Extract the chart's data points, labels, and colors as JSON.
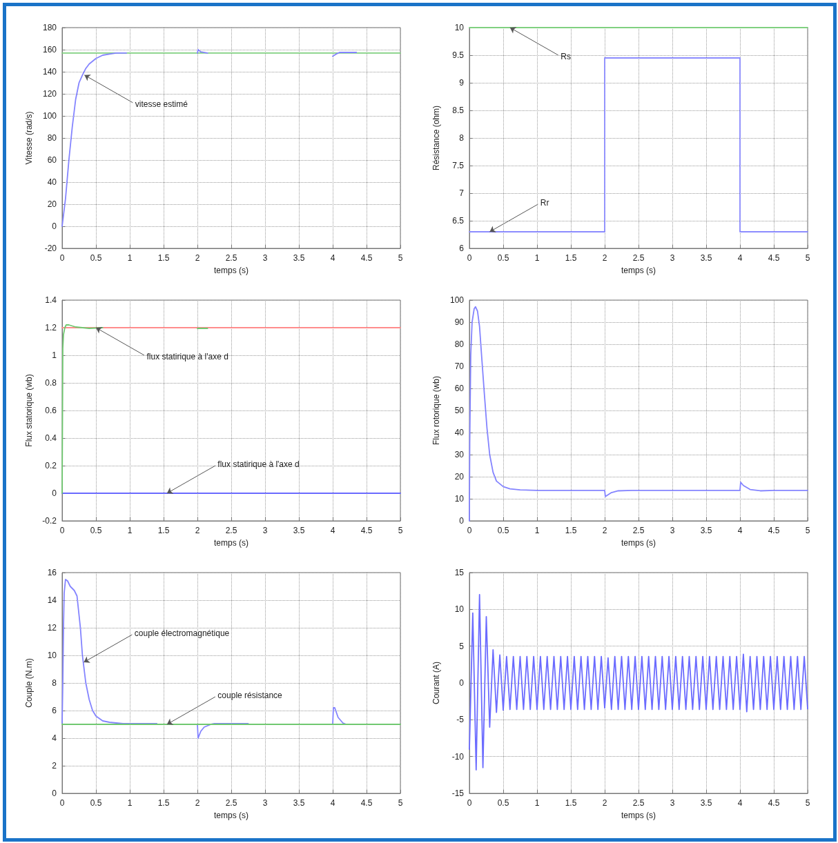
{
  "chart_data": [
    {
      "type": "line",
      "xlabel": "temps (s)",
      "ylabel": "Vitesse (rad/s)",
      "xlim": [
        0,
        5
      ],
      "xticks": [
        0,
        0.5,
        1,
        1.5,
        2,
        2.5,
        3,
        3.5,
        4,
        4.5,
        5
      ],
      "ylim": [
        -20,
        180
      ],
      "yticks": [
        -20,
        0,
        20,
        40,
        60,
        80,
        100,
        120,
        140,
        160,
        180
      ],
      "grid": true,
      "marker": "none",
      "line_style": "solid",
      "series": [
        {
          "color": "#80d080",
          "x": [
            0,
            5
          ],
          "values": [
            157,
            157
          ]
        },
        {
          "color": "#8484ff",
          "x": [
            0,
            0.05,
            0.1,
            0.15,
            0.2,
            0.25,
            0.3,
            0.35,
            0.4,
            0.5,
            0.6,
            0.7,
            0.8,
            0.95,
            1.5,
            3,
            4,
            4.05,
            4.1,
            4.35
          ],
          "values": [
            0,
            25,
            60,
            90,
            115,
            130,
            137,
            143,
            147,
            152,
            155,
            156,
            157,
            157,
            null,
            null,
            154,
            156,
            157.5,
            157.5
          ]
        },
        {
          "color": "#8484ff",
          "x": [
            2,
            2.01,
            2.05,
            2.15
          ],
          "values": [
            157,
            160,
            158,
            157
          ]
        }
      ],
      "annotations": [
        {
          "text": "vitesse estimé",
          "x": 0.33,
          "y": 137
        }
      ]
    },
    {
      "type": "line",
      "xlabel": "temps (s)",
      "ylabel": "Résistance (ohm)",
      "xlim": [
        0,
        5
      ],
      "xticks": [
        0,
        0.5,
        1,
        1.5,
        2,
        2.5,
        3,
        3.5,
        4,
        4.5,
        5
      ],
      "ylim": [
        6,
        10
      ],
      "yticks": [
        6,
        6.5,
        7,
        7.5,
        8,
        8.5,
        9,
        9.5,
        10
      ],
      "grid": true,
      "marker": "none",
      "line_style": "solid",
      "series": [
        {
          "type": "step",
          "color": "#8c8cff",
          "x": [
            0,
            2,
            4,
            5
          ],
          "values": [
            6.3,
            9.45,
            6.3,
            6.3
          ]
        },
        {
          "color": "#80d080",
          "x": [
            0,
            5
          ],
          "values": [
            10,
            10
          ]
        }
      ],
      "annotations": [
        {
          "text": "Rs",
          "x": 0.6,
          "y": 10
        },
        {
          "text": "Rr",
          "x": 0.3,
          "y": 6.3
        }
      ]
    },
    {
      "type": "line",
      "xlabel": "temps (s)",
      "ylabel": "Flux statorique (wb)",
      "xlim": [
        0,
        5
      ],
      "xticks": [
        0,
        0.5,
        1,
        1.5,
        2,
        2.5,
        3,
        3.5,
        4,
        4.5,
        5
      ],
      "ylim": [
        -0.2,
        1.4
      ],
      "yticks": [
        -0.2,
        0,
        0.2,
        0.4,
        0.6,
        0.8,
        1,
        1.2,
        1.4
      ],
      "grid": true,
      "marker": "none",
      "line_style": "solid",
      "series": [
        {
          "color": "#ff8c8c",
          "x": [
            0,
            5
          ],
          "values": [
            1.2,
            1.2
          ]
        },
        {
          "color": "#6a6aff",
          "x": [
            0,
            5
          ],
          "values": [
            0,
            0
          ]
        },
        {
          "color": "#70c870",
          "x": [
            0,
            0.01,
            0.02,
            0.04,
            0.06,
            0.1,
            0.2,
            0.3,
            0.4,
            0.6,
            1.2,
            2,
            2.15
          ],
          "values": [
            0,
            1.05,
            1.15,
            1.2,
            1.22,
            1.22,
            1.205,
            1.2,
            1.195,
            1.2,
            null,
            1.195,
            1.195
          ]
        }
      ],
      "annotations": [
        {
          "text": "flux statirique à l'axe d",
          "x": 0.5,
          "y": 1.2
        },
        {
          "text": "flux statirique à l'axe d",
          "x": 1.55,
          "y": 0
        }
      ]
    },
    {
      "type": "line",
      "xlabel": "temps (s)",
      "ylabel": "Flux rotorique (wb)",
      "xlim": [
        0,
        5
      ],
      "xticks": [
        0,
        0.5,
        1,
        1.5,
        2,
        2.5,
        3,
        3.5,
        4,
        4.5,
        5
      ],
      "ylim": [
        0,
        100
      ],
      "yticks": [
        0,
        10,
        20,
        30,
        40,
        50,
        60,
        70,
        80,
        90,
        100
      ],
      "grid": true,
      "marker": "none",
      "line_style": "solid",
      "series": [
        {
          "color": "#8484ff",
          "x": [
            0,
            0.005,
            0.02,
            0.04,
            0.07,
            0.09,
            0.12,
            0.15,
            0.18,
            0.22,
            0.26,
            0.3,
            0.35,
            0.4,
            0.5,
            0.6,
            0.75,
            1,
            2,
            2.01,
            2.1,
            2.2,
            2.4,
            4,
            4.01,
            4.05,
            4.15,
            4.3,
            4.5,
            5
          ],
          "values": [
            0,
            35,
            75,
            90,
            96,
            97,
            95,
            88,
            75,
            58,
            42,
            30,
            22,
            18,
            15.5,
            14.5,
            14,
            13.8,
            13.8,
            11,
            12.8,
            13.6,
            13.8,
            13.8,
            17.5,
            16,
            14.2,
            13.6,
            13.8,
            13.8
          ]
        }
      ]
    },
    {
      "type": "line",
      "xlabel": "temps (s)",
      "ylabel": "Couple (N.m)",
      "xlim": [
        0,
        5
      ],
      "xticks": [
        0,
        0.5,
        1,
        1.5,
        2,
        2.5,
        3,
        3.5,
        4,
        4.5,
        5
      ],
      "ylim": [
        0,
        16
      ],
      "yticks": [
        0,
        2,
        4,
        6,
        8,
        10,
        12,
        14,
        16
      ],
      "grid": true,
      "marker": "none",
      "line_style": "solid",
      "series": [
        {
          "color": "#8484ff",
          "x": [
            0,
            0.01,
            0.02,
            0.03,
            0.05,
            0.08,
            0.12,
            0.18,
            0.22,
            0.27,
            0.3,
            0.35,
            0.4,
            0.45,
            0.5,
            0.6,
            0.7,
            0.9,
            1.4,
            1.7,
            2,
            2.01,
            2.05,
            2.1,
            2.2,
            2.25,
            2.75,
            3.4,
            4,
            4.01,
            4.03,
            4.08,
            4.15,
            4.2
          ],
          "values": [
            5.1,
            8,
            12,
            14.5,
            15.5,
            15.4,
            15,
            14.7,
            14.3,
            12,
            10,
            8,
            6.8,
            6,
            5.6,
            5.25,
            5.15,
            5.05,
            5.05,
            null,
            5,
            4,
            4.5,
            4.8,
            5,
            5.05,
            5.05,
            null,
            5,
            6.2,
            6.2,
            5.5,
            5.1,
            5
          ]
        },
        {
          "color": "#70c870",
          "x": [
            0,
            5
          ],
          "values": [
            5,
            5
          ]
        }
      ],
      "annotations": [
        {
          "text": "couple électromagnétique",
          "x": 0.32,
          "y": 9.5
        },
        {
          "text": "couple résistance",
          "x": 1.55,
          "y": 5
        }
      ]
    },
    {
      "type": "line",
      "xlabel": "temps (s)",
      "ylabel": "Courant (A)",
      "xlim": [
        0,
        5
      ],
      "xticks": [
        0,
        0.5,
        1,
        1.5,
        2,
        2.5,
        3,
        3.5,
        4,
        4.5,
        5
      ],
      "ylim": [
        -15,
        15
      ],
      "yticks": [
        -15,
        -10,
        -5,
        0,
        5,
        10,
        15
      ],
      "grid": true,
      "marker": "none",
      "line_style": "solid",
      "series": [
        {
          "color": "#6b6bff",
          "x": [
            0,
            0.05,
            0.1,
            0.15,
            0.2,
            0.25,
            0.3,
            0.35,
            0.4,
            0.45,
            0.5,
            0.55,
            0.6,
            0.65,
            0.7,
            0.75,
            0.8,
            0.85,
            0.9,
            0.95,
            1,
            1.05,
            1.1,
            1.15,
            1.2,
            1.25,
            1.3,
            1.35,
            1.4,
            1.45,
            1.5,
            1.55,
            1.6,
            1.65,
            1.7,
            1.75,
            1.8,
            1.85,
            1.9,
            1.95,
            2,
            2.05,
            2.1,
            2.15,
            2.2,
            2.25,
            2.3,
            2.35,
            2.4,
            2.45,
            2.5,
            2.55,
            2.6,
            2.65,
            2.7,
            2.75,
            2.8,
            2.85,
            2.9,
            2.95,
            3,
            3.05,
            3.1,
            3.15,
            3.2,
            3.25,
            3.3,
            3.35,
            3.4,
            3.45,
            3.5,
            3.55,
            3.6,
            3.65,
            3.7,
            3.75,
            3.8,
            3.85,
            3.9,
            3.95,
            4,
            4.05,
            4.1,
            4.15,
            4.2,
            4.25,
            4.3,
            4.35,
            4.4,
            4.45,
            4.5,
            4.55,
            4.6,
            4.65,
            4.7,
            4.75,
            4.8,
            4.85,
            4.9,
            4.95,
            5
          ],
          "values": [
            -9,
            9.5,
            -11.8,
            12,
            -11.5,
            9,
            -6,
            4.5,
            -4,
            3.8,
            -3.7,
            3.6,
            -3.6,
            3.6,
            -3.6,
            3.6,
            -3.6,
            3.6,
            -3.6,
            3.6,
            -3.6,
            3.6,
            -3.6,
            3.6,
            -3.6,
            3.6,
            -3.6,
            3.6,
            -3.6,
            3.6,
            -3.6,
            3.6,
            -3.6,
            3.6,
            -3.6,
            3.6,
            -3.6,
            3.6,
            -3.6,
            3.6,
            -3.4,
            3.4,
            -3.6,
            3.6,
            -3.6,
            3.6,
            -3.6,
            3.6,
            -3.6,
            3.6,
            -3.6,
            3.6,
            -3.6,
            3.6,
            -3.6,
            3.6,
            -3.6,
            3.6,
            -3.6,
            3.6,
            -3.6,
            3.6,
            -3.6,
            3.6,
            -3.6,
            3.6,
            -3.6,
            3.6,
            -3.6,
            3.6,
            -3.6,
            3.6,
            -3.6,
            3.6,
            -3.6,
            3.6,
            -3.6,
            3.6,
            -3.6,
            3.6,
            -3.6,
            3.9,
            -3.9,
            3.6,
            -3.6,
            3.6,
            -3.6,
            3.6,
            -3.6,
            3.6,
            -3.6,
            3.6,
            -3.6,
            3.6,
            -3.6,
            3.6,
            -3.6,
            3.6,
            -3.6,
            3.6,
            -3.5
          ]
        }
      ]
    }
  ]
}
